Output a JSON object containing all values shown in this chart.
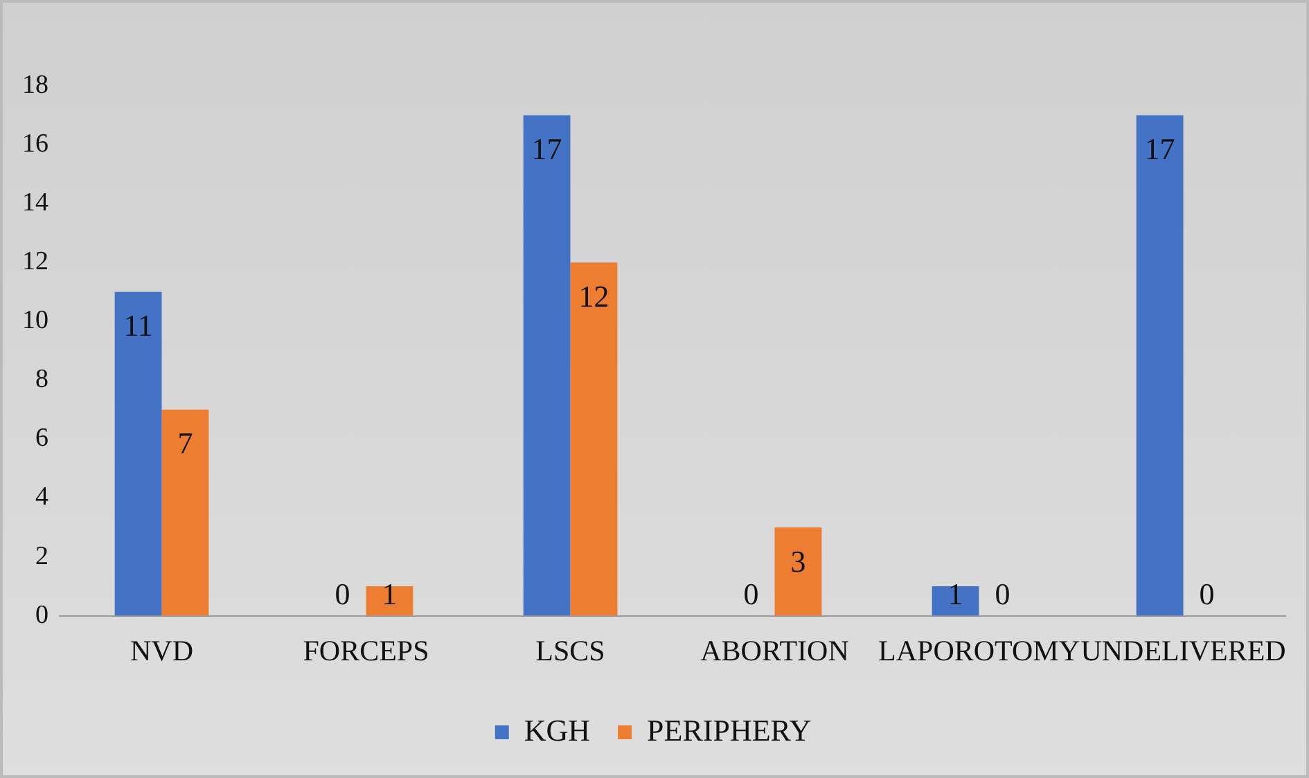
{
  "chart_data": {
    "type": "bar",
    "categories": [
      "NVD",
      "FORCEPS",
      "LSCS",
      "ABORTION",
      "LAPOROTOMY",
      "UNDELIVERED"
    ],
    "series": [
      {
        "name": "KGH",
        "color": "#4472c4",
        "values": [
          11,
          0,
          17,
          0,
          1,
          17
        ]
      },
      {
        "name": "PERIPHERY",
        "color": "#ed7d31",
        "values": [
          7,
          1,
          12,
          3,
          0,
          0
        ]
      }
    ],
    "ylim": [
      0,
      18
    ],
    "yticks": [
      0,
      2,
      4,
      6,
      8,
      10,
      12,
      14,
      16,
      18
    ],
    "grid": false,
    "legend": "bottom",
    "data_labels": true
  }
}
